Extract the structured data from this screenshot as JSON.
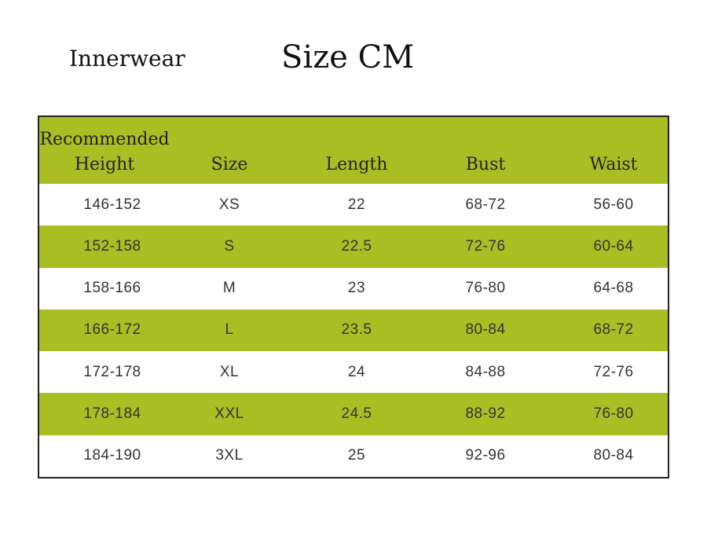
{
  "header": {
    "category": "Innerwear",
    "title": "Size CM"
  },
  "table": {
    "columns": [
      "Recommended Height",
      "Size",
      "Length",
      "Bust",
      "Waist"
    ],
    "rows": [
      [
        "146-152",
        "XS",
        "22",
        "68-72",
        "56-60"
      ],
      [
        "152-158",
        "S",
        "22.5",
        "72-76",
        "60-64"
      ],
      [
        "158-166",
        "M",
        "23",
        "76-80",
        "64-68"
      ],
      [
        "166-172",
        "L",
        "23.5",
        "80-84",
        "68-72"
      ],
      [
        "172-178",
        "XL",
        "24",
        "84-88",
        "72-76"
      ],
      [
        "178-184",
        "XXL",
        "24.5",
        "88-92",
        "76-80"
      ],
      [
        "184-190",
        "3XL",
        "25",
        "92-96",
        "80-84"
      ]
    ]
  }
}
